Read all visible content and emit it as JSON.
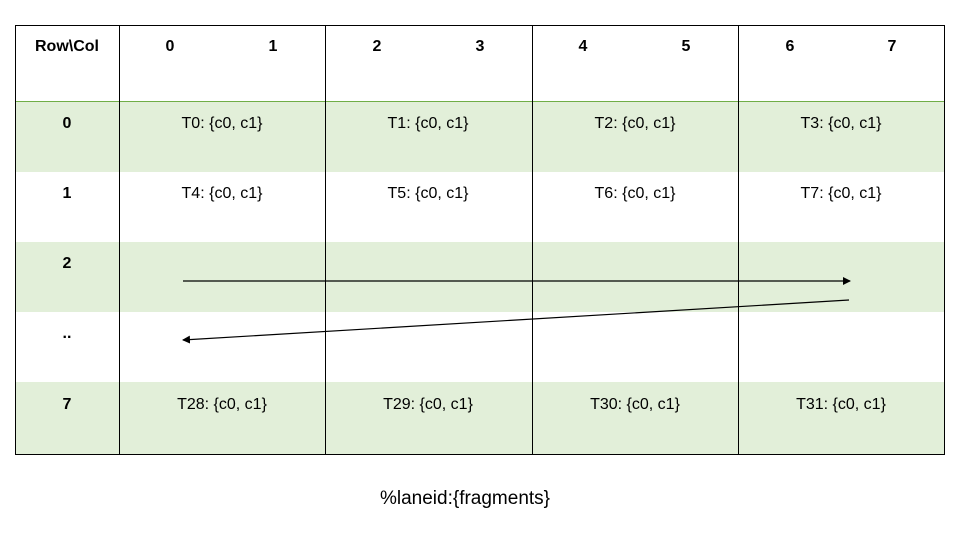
{
  "header": {
    "corner": "Row\\Col",
    "columns": [
      "0",
      "1",
      "2",
      "3",
      "4",
      "5",
      "6",
      "7"
    ]
  },
  "rows": [
    {
      "label": "0",
      "cells": [
        "T0: {c0, c1}",
        "T1: {c0, c1}",
        "T2: {c0, c1}",
        "T3: {c0, c1}"
      ]
    },
    {
      "label": "1",
      "cells": [
        "T4: {c0, c1}",
        "T5: {c0, c1}",
        "T6: {c0, c1}",
        "T7: {c0, c1}"
      ]
    },
    {
      "label": "2",
      "cells": []
    },
    {
      "label": "..",
      "cells": []
    },
    {
      "label": "7",
      "cells": [
        "T28: {c0, c1}",
        "T29: {c0, c1}",
        "T30: {c0, c1}",
        "T31: {c0, c1}"
      ]
    }
  ],
  "caption": "%laneid:{fragments}",
  "colors": {
    "row_fill": "#e2efd9",
    "header_border": "#70ad47"
  }
}
